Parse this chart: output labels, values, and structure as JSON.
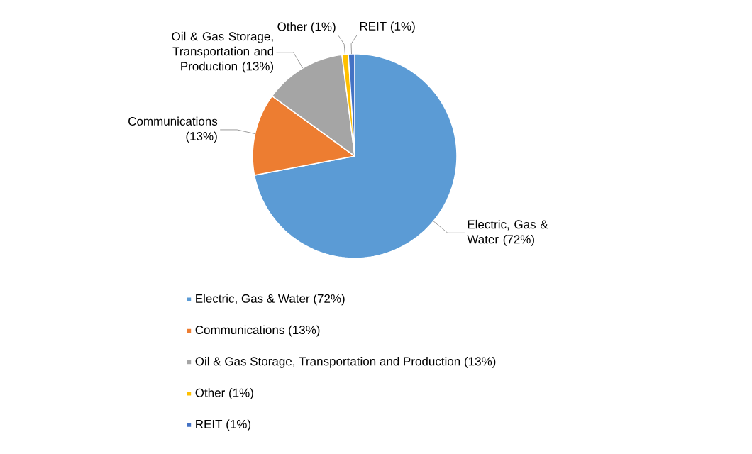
{
  "chart_data": {
    "type": "pie",
    "categories": [
      "Electric, Gas & Water",
      "Communications",
      "Oil & Gas Storage, Transportation and Production",
      "Other",
      "REIT"
    ],
    "values": [
      72,
      13,
      13,
      1,
      1
    ],
    "value_labels": [
      "(72%)",
      "(13%)",
      "(13%)",
      "(1%)",
      "(1%)"
    ],
    "colors": [
      "#5b9bd5",
      "#ed7d31",
      "#a5a5a5",
      "#ffc000",
      "#4472c4"
    ],
    "legend": "bottom"
  }
}
